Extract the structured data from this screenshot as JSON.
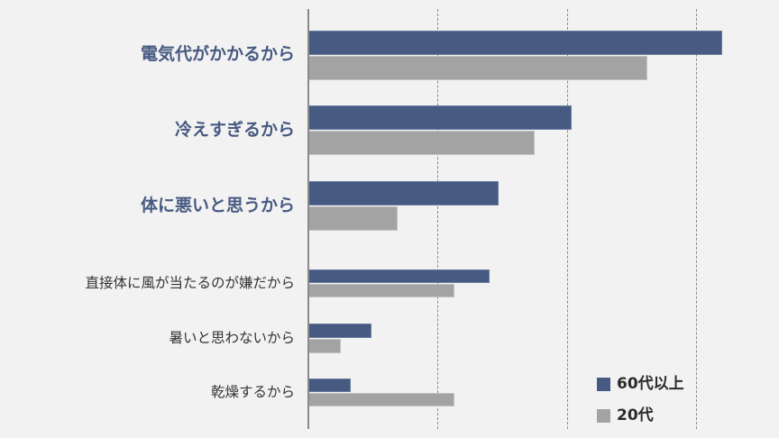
{
  "chart_data": {
    "type": "bar",
    "orientation": "horizontal",
    "title": "",
    "xlabel": "",
    "ylabel": "",
    "xlim": [
      0,
      30
    ],
    "grid": true,
    "gridline_interval": 10,
    "legend_position": "bottom-right",
    "categories": [
      "電気代がかかるから",
      "冷えすぎるから",
      "体に悪いと思うから",
      "直接体に風が当たるのが嫌だから",
      "暑いと思わないから",
      "乾燥するから"
    ],
    "emphasized_categories": [
      0,
      1,
      2
    ],
    "series": [
      {
        "name": "60代以上",
        "color": "#475a82",
        "values": [
          32.0,
          20.4,
          14.7,
          14.0,
          4.9,
          3.3
        ]
      },
      {
        "name": "20代",
        "color": "#a3a3a3",
        "values": [
          26.2,
          17.5,
          6.9,
          11.3,
          2.5,
          11.3
        ]
      }
    ]
  },
  "labels": {
    "cat0": "電気代がかかるから",
    "cat1": "冷えすぎるから",
    "cat2": "体に悪いと思うから",
    "cat3": "直接体に風が当たるのが嫌だから",
    "cat4": "暑いと思わないから",
    "cat5": "乾燥するから"
  },
  "legend": {
    "series0": "60代以上",
    "series1": "20代"
  },
  "colors": {
    "series0": "#475a82",
    "series1": "#a3a3a3",
    "emphasis_label": "#475a82",
    "background": "#f2f2f2"
  }
}
